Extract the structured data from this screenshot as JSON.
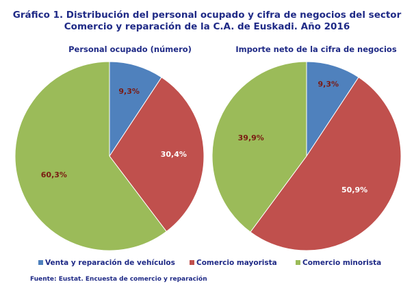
{
  "title_lines": [
    "Gráfico 1. Distribución del personal ocupado y cifra de negocios del sector",
    "Comercio y reparación de la C.A. de Euskadi. Año 2016"
  ],
  "source": "Fuente: Eustat. Encuesta de comercio y reparación",
  "colors": {
    "venta": "#4f81bd",
    "mayorista": "#c0504d",
    "minorista": "#9bbb59",
    "label": "#7a1a12",
    "text": "#1f2a86"
  },
  "chart_data": [
    {
      "type": "pie",
      "title": "Personal ocupado (número)",
      "categories": [
        "Venta y reparación de vehículos",
        "Comercio mayorista",
        "Comercio minorista"
      ],
      "values": [
        9.3,
        30.4,
        60.3
      ],
      "data_labels": [
        "9,3%",
        "30,4%",
        "60,3%"
      ],
      "legend_position": "bottom"
    },
    {
      "type": "pie",
      "title": "Importe neto de la cifra de negocios",
      "categories": [
        "Venta y reparación de vehículos",
        "Comercio mayorista",
        "Comercio minorista"
      ],
      "values": [
        9.3,
        50.9,
        39.9
      ],
      "data_labels": [
        "9,3%",
        "50,9%",
        "39,9%"
      ],
      "legend_position": "bottom"
    }
  ],
  "legend": [
    {
      "label": "Venta y reparación de vehículos",
      "color": "#4f81bd"
    },
    {
      "label": "Comercio mayorista",
      "color": "#c0504d"
    },
    {
      "label": "Comercio minorista",
      "color": "#9bbb59"
    }
  ]
}
